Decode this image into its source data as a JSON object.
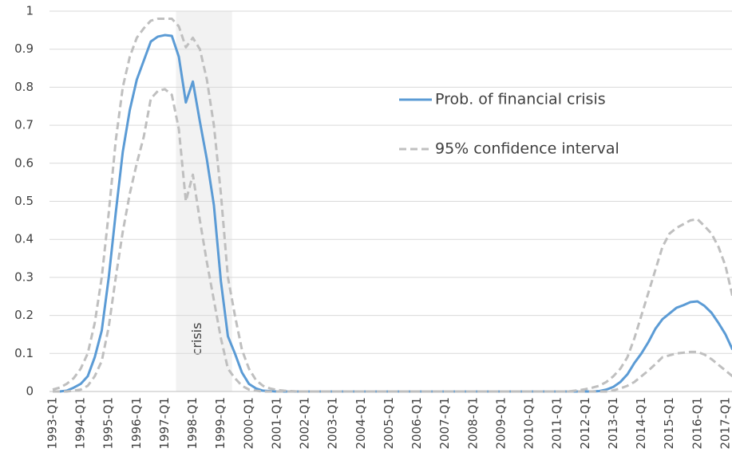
{
  "chart_data": {
    "type": "line",
    "categories": [
      "1993-Q1",
      null,
      null,
      null,
      "1994-Q1",
      null,
      null,
      null,
      "1995-Q1",
      null,
      null,
      null,
      "1996-Q1",
      null,
      null,
      null,
      "1997-Q1",
      null,
      null,
      null,
      "1998-Q1",
      null,
      null,
      null,
      "1999-Q1",
      null,
      null,
      null,
      "2000-Q1",
      null,
      null,
      null,
      "2001-Q1",
      null,
      null,
      null,
      "2002-Q1",
      null,
      null,
      null,
      "2003-Q1",
      null,
      null,
      null,
      "2004-Q1",
      null,
      null,
      null,
      "2005-Q1",
      null,
      null,
      null,
      "2006-Q1",
      null,
      null,
      null,
      "2007-Q1",
      null,
      null,
      null,
      "2008-Q1",
      null,
      null,
      null,
      "2009-Q1",
      null,
      null,
      null,
      "2010-Q1",
      null,
      null,
      null,
      "2011-Q1",
      null,
      null,
      null,
      "2012-Q1",
      null,
      null,
      null,
      "2013-Q1",
      null,
      null,
      null,
      "2014-Q1",
      null,
      null,
      null,
      "2015-Q1",
      null,
      null,
      null,
      "2016-Q1",
      null,
      null,
      null,
      "2017-Q1",
      null
    ],
    "series": [
      {
        "name": "Prob. of financial crisis",
        "color": "#5b9bd5",
        "dashed": false,
        "values": [
          0,
          0,
          0.002,
          0.01,
          0.02,
          0.04,
          0.09,
          0.16,
          0.3,
          0.47,
          0.63,
          0.74,
          0.82,
          0.87,
          0.92,
          0.933,
          0.937,
          0.935,
          0.88,
          0.76,
          0.815,
          0.71,
          0.61,
          0.49,
          0.29,
          0.145,
          0.1,
          0.05,
          0.02,
          0.008,
          0.002,
          0.001,
          0,
          0,
          0,
          0,
          0,
          0,
          0,
          0,
          0,
          0,
          0,
          0,
          0,
          0,
          0,
          0,
          0,
          0,
          0,
          0,
          0,
          0,
          0,
          0,
          0,
          0,
          0,
          0,
          0,
          0,
          0,
          0,
          0,
          0,
          0,
          0,
          0,
          0,
          0,
          0,
          0,
          0,
          0,
          0,
          0,
          0,
          0.001,
          0.005,
          0.012,
          0.025,
          0.045,
          0.075,
          0.1,
          0.13,
          0.165,
          0.19,
          0.205,
          0.22,
          0.227,
          0.235,
          0.237,
          0.225,
          0.207,
          0.18,
          0.15,
          0.11
        ]
      },
      {
        "name": "95% confidence interval",
        "color": "#bfbfbf",
        "dashed": true,
        "values": [
          0.005,
          0.01,
          0.02,
          0.035,
          0.06,
          0.1,
          0.18,
          0.3,
          0.47,
          0.66,
          0.8,
          0.88,
          0.93,
          0.955,
          0.975,
          0.98,
          0.98,
          0.98,
          0.96,
          0.905,
          0.93,
          0.9,
          0.82,
          0.7,
          0.52,
          0.3,
          0.2,
          0.11,
          0.06,
          0.03,
          0.015,
          0.008,
          0.004,
          0.002,
          0.001,
          0,
          0,
          0,
          0,
          0,
          0,
          0,
          0,
          0,
          0,
          0,
          0,
          0,
          0,
          0,
          0,
          0,
          0,
          0,
          0,
          0,
          0,
          0,
          0,
          0,
          0,
          0,
          0,
          0,
          0,
          0,
          0,
          0,
          0,
          0,
          0,
          0,
          0,
          0,
          0.001,
          0.003,
          0.006,
          0.01,
          0.015,
          0.025,
          0.04,
          0.06,
          0.09,
          0.14,
          0.2,
          0.26,
          0.32,
          0.38,
          0.415,
          0.43,
          0.44,
          0.45,
          0.453,
          0.435,
          0.415,
          0.38,
          0.33,
          0.25
        ]
      },
      {
        "color": "#bfbfbf",
        "dashed": true,
        "values": [
          0,
          0,
          0,
          0.002,
          0.005,
          0.015,
          0.04,
          0.08,
          0.17,
          0.3,
          0.42,
          0.52,
          0.6,
          0.67,
          0.77,
          0.79,
          0.795,
          0.78,
          0.69,
          0.5,
          0.57,
          0.45,
          0.34,
          0.24,
          0.14,
          0.06,
          0.035,
          0.015,
          0.005,
          0.002,
          0,
          0,
          0,
          0,
          0,
          0,
          0,
          0,
          0,
          0,
          0,
          0,
          0,
          0,
          0,
          0,
          0,
          0,
          0,
          0,
          0,
          0,
          0,
          0,
          0,
          0,
          0,
          0,
          0,
          0,
          0,
          0,
          0,
          0,
          0,
          0,
          0,
          0,
          0,
          0,
          0,
          0,
          0,
          0,
          0,
          0,
          0,
          0,
          0,
          0,
          0.003,
          0.008,
          0.015,
          0.025,
          0.04,
          0.055,
          0.072,
          0.09,
          0.095,
          0.1,
          0.102,
          0.104,
          0.104,
          0.097,
          0.085,
          0.07,
          0.055,
          0.04
        ]
      }
    ],
    "ylim": [
      0,
      1
    ],
    "yticks": [
      0,
      0.1,
      0.2,
      0.3,
      0.4,
      0.5,
      0.6,
      0.7,
      0.8,
      0.9,
      1
    ],
    "grid": true,
    "legend": "right",
    "shade": {
      "label": "crisis",
      "start": 17.6,
      "end": 25.6
    }
  }
}
